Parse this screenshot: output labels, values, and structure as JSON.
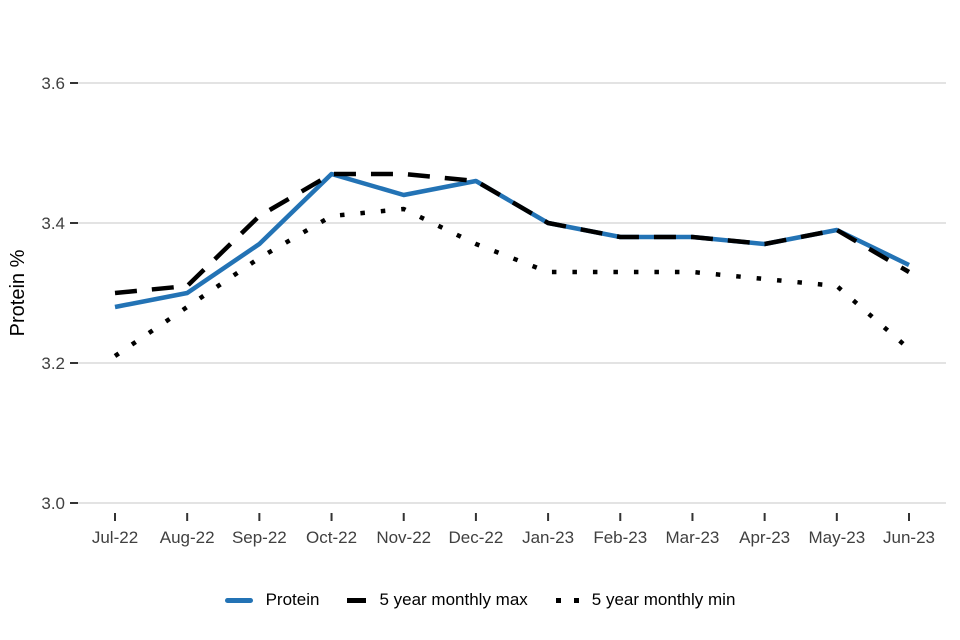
{
  "chart_data": {
    "type": "line",
    "title": "",
    "xlabel": "",
    "ylabel": "Protein %",
    "categories": [
      "Jul-22",
      "Aug-22",
      "Sep-22",
      "Oct-22",
      "Nov-22",
      "Dec-22",
      "Jan-23",
      "Feb-23",
      "Mar-23",
      "Apr-23",
      "May-23",
      "Jun-23"
    ],
    "series": [
      {
        "name": "Protein",
        "style": "solid",
        "color": "#2373b5",
        "values": [
          3.28,
          3.3,
          3.37,
          3.47,
          3.44,
          3.46,
          3.4,
          3.38,
          3.38,
          3.37,
          3.39,
          3.34
        ]
      },
      {
        "name": "5 year monthly max",
        "style": "dashed",
        "color": "#000000",
        "values": [
          3.3,
          3.31,
          3.41,
          3.47,
          3.47,
          3.46,
          3.4,
          3.38,
          3.38,
          3.37,
          3.39,
          3.33
        ]
      },
      {
        "name": "5 year monthly min",
        "style": "dotted",
        "color": "#000000",
        "values": [
          3.21,
          3.28,
          3.35,
          3.41,
          3.42,
          3.37,
          3.33,
          3.33,
          3.33,
          3.32,
          3.31,
          3.22
        ]
      }
    ],
    "ylim": [
      3.0,
      3.6
    ],
    "yticks": [
      3.6,
      3.4,
      3.2,
      3.0
    ],
    "ytick_labels": [
      "3.6",
      "3.4",
      "3.2",
      "3.0"
    ],
    "grid": "horizontal-major",
    "legend_position": "bottom",
    "colors": {
      "background": "#ffffff",
      "gridline": "#e3e3e3",
      "axis_text": "#404040",
      "tick_mark": "#333333",
      "text": "#000000"
    }
  }
}
